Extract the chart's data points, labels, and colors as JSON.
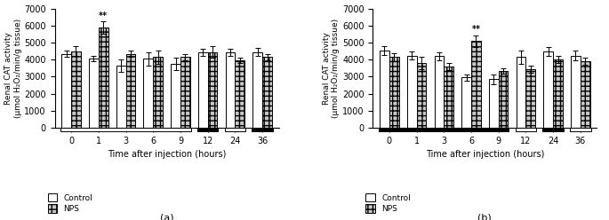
{
  "subplot_a": {
    "title": "(a)",
    "ylabel": "Renal CAT activity\n(μmol H₂O₂/min/g tissue)",
    "xlabel": "Time after injection (hours)",
    "time_points": [
      0,
      1,
      3,
      6,
      9,
      12,
      24,
      36
    ],
    "control_means": [
      4350,
      4050,
      3650,
      4050,
      3750,
      4450,
      4450,
      4450
    ],
    "control_errors": [
      200,
      150,
      350,
      400,
      350,
      200,
      200,
      250
    ],
    "nps_means": [
      4500,
      5900,
      4350,
      4150,
      4150,
      4450,
      3950,
      4150
    ],
    "nps_errors": [
      300,
      350,
      200,
      400,
      200,
      350,
      150,
      200
    ],
    "significance_idx": 1,
    "significance_label": "**",
    "ylim": [
      0,
      7000
    ],
    "yticks": [
      0,
      1000,
      2000,
      3000,
      4000,
      5000,
      6000,
      7000
    ],
    "segment_colors": [
      "white",
      "white",
      "white",
      "white",
      "white",
      "black",
      "white",
      "black"
    ]
  },
  "subplot_b": {
    "title": "(b)",
    "ylabel": "Renal CAT activity\n(μmol H₂O₂/min/g tissue)",
    "xlabel": "Time after injection (hours)",
    "time_points": [
      0,
      1,
      3,
      6,
      9,
      12,
      24,
      36
    ],
    "control_means": [
      4550,
      4250,
      4200,
      2950,
      2850,
      4150,
      4500,
      4250
    ],
    "control_errors": [
      250,
      250,
      250,
      200,
      300,
      400,
      250,
      300
    ],
    "nps_means": [
      4150,
      3800,
      3600,
      5100,
      3350,
      3450,
      4000,
      3900
    ],
    "nps_errors": [
      250,
      350,
      200,
      350,
      150,
      200,
      200,
      200
    ],
    "significance_idx": 3,
    "significance_label": "**",
    "ylim": [
      0,
      7000
    ],
    "yticks": [
      0,
      1000,
      2000,
      3000,
      4000,
      5000,
      6000,
      7000
    ],
    "segment_colors": [
      "black",
      "black",
      "black",
      "black",
      "black",
      "white",
      "black",
      "white"
    ]
  },
  "bar_width": 0.35,
  "control_facecolor": "white",
  "nps_facecolor": "#c8c8c8",
  "nps_hatch": "+++",
  "edge_color": "black",
  "figsize": [
    6.85,
    2.48
  ],
  "dpi": 100
}
